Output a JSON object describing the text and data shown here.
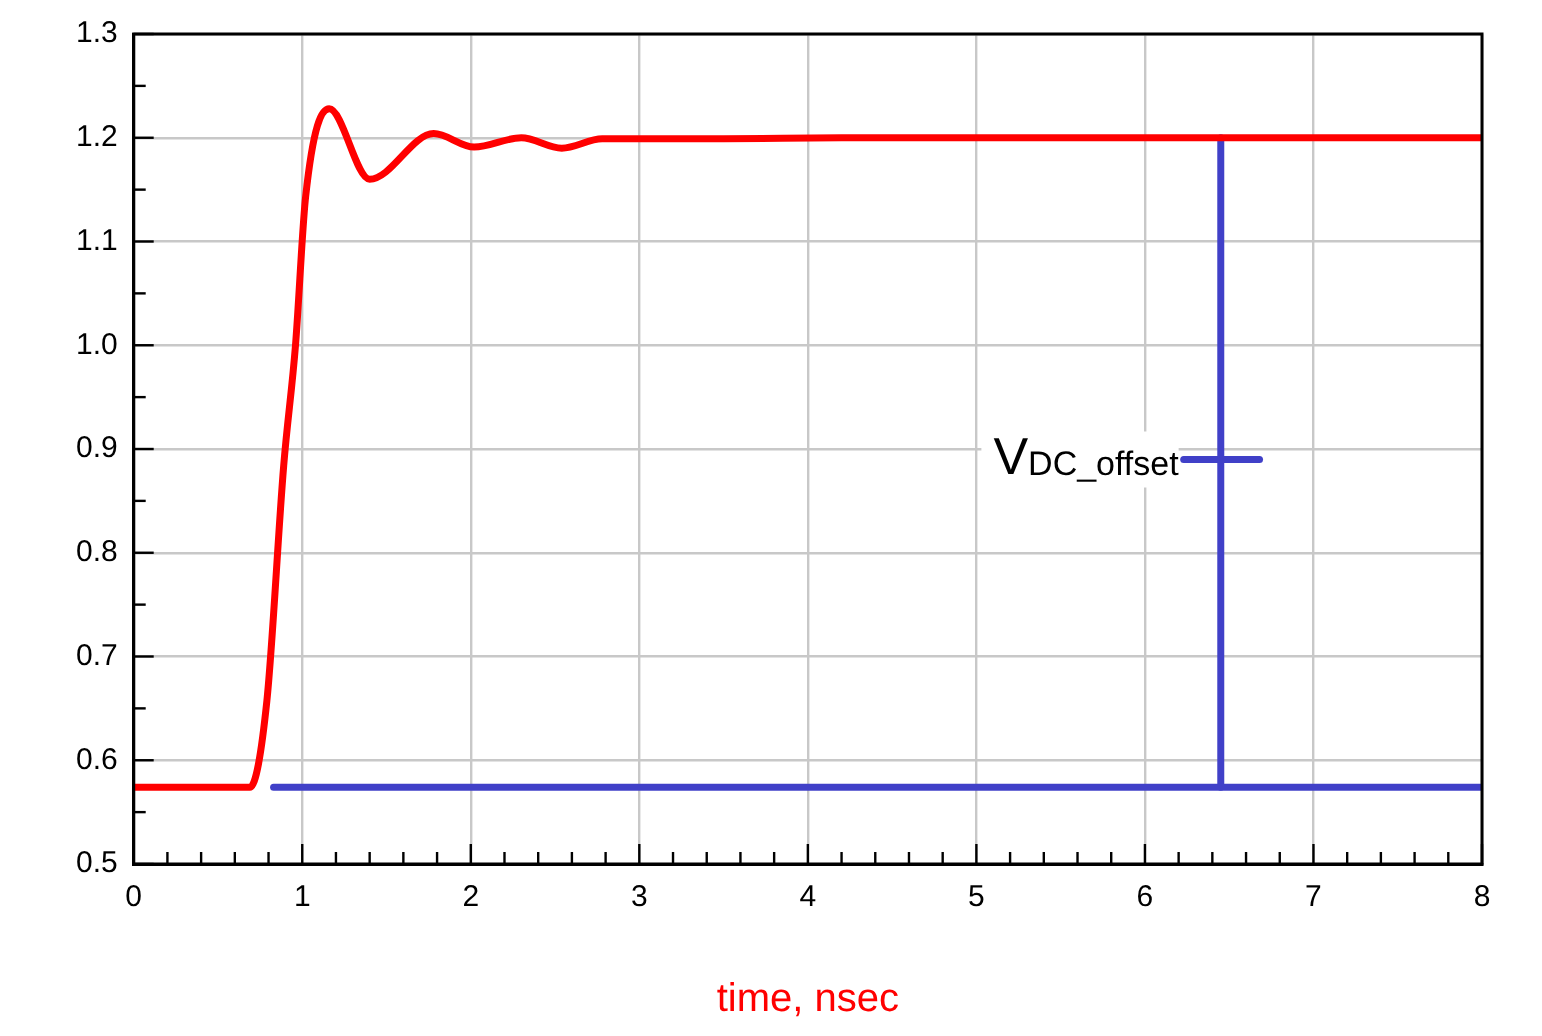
{
  "chart_data": {
    "type": "line",
    "xlabel": "time, nsec",
    "xlim": [
      0,
      8
    ],
    "xticks": [
      0,
      {
        "value": 0.2,
        "label": null
      },
      {
        "value": 0.4,
        "label": null
      },
      {
        "value": 0.6,
        "label": null
      },
      {
        "value": 0.8,
        "label": null
      },
      1,
      {
        "value": 1.2,
        "label": null
      },
      {
        "value": 1.4,
        "label": null
      },
      {
        "value": 1.6,
        "label": null
      },
      {
        "value": 1.8,
        "label": null
      },
      2,
      {
        "value": 2.2,
        "label": null
      },
      {
        "value": 2.4,
        "label": null
      },
      {
        "value": 2.6,
        "label": null
      },
      {
        "value": 2.8,
        "label": null
      },
      3,
      {
        "value": 3.2,
        "label": null
      },
      {
        "value": 3.4,
        "label": null
      },
      {
        "value": 3.6,
        "label": null
      },
      {
        "value": 3.8,
        "label": null
      },
      4,
      {
        "value": 4.2,
        "label": null
      },
      {
        "value": 4.4,
        "label": null
      },
      {
        "value": 4.6,
        "label": null
      },
      {
        "value": 4.8,
        "label": null
      },
      5,
      {
        "value": 5.2,
        "label": null
      },
      {
        "value": 5.4,
        "label": null
      },
      {
        "value": 5.6,
        "label": null
      },
      {
        "value": 5.8,
        "label": null
      },
      6,
      {
        "value": 6.2,
        "label": null
      },
      {
        "value": 6.4,
        "label": null
      },
      {
        "value": 6.6,
        "label": null
      },
      {
        "value": 6.8,
        "label": null
      },
      7,
      {
        "value": 7.2,
        "label": null
      },
      {
        "value": 7.4,
        "label": null
      },
      {
        "value": 7.6,
        "label": null
      },
      {
        "value": 7.8,
        "label": null
      },
      8
    ],
    "ylim": [
      0.5,
      1.3
    ],
    "yticks": [
      {
        "value": 0.5,
        "label": "0.5"
      },
      {
        "value": 0.55,
        "label": null
      },
      {
        "value": 0.6,
        "label": "0.6"
      },
      {
        "value": 0.65,
        "label": null
      },
      {
        "value": 0.7,
        "label": "0.7"
      },
      {
        "value": 0.75,
        "label": null
      },
      {
        "value": 0.8,
        "label": "0.8"
      },
      {
        "value": 0.85,
        "label": null
      },
      {
        "value": 0.9,
        "label": "0.9"
      },
      {
        "value": 0.95,
        "label": null
      },
      {
        "value": 1.0,
        "label": "1.0"
      },
      {
        "value": 1.05,
        "label": null
      },
      {
        "value": 1.1,
        "label": "1.1"
      },
      {
        "value": 1.15,
        "label": null
      },
      {
        "value": 1.2,
        "label": "1.2"
      },
      {
        "value": 1.25,
        "label": null
      },
      {
        "value": 1.3,
        "label": "1.3"
      }
    ],
    "grid": true,
    "marker": "none",
    "line_style": "solid",
    "series": [
      {
        "color": "#ff0000",
        "x": [
          0,
          0.69,
          0.79,
          0.89,
          0.96,
          1.02,
          1.16,
          1.4,
          1.78,
          2.02,
          2.3,
          2.54,
          2.78,
          3.5,
          4.2,
          5,
          8
        ],
        "values": [
          0.574,
          0.574,
          0.657,
          0.884,
          1.0,
          1.143,
          1.228,
          1.16,
          1.204,
          1.191,
          1.2,
          1.19,
          1.199,
          1.199,
          1.2,
          1.2,
          1.2
        ]
      },
      {
        "color": "#4040c8",
        "x": [
          0.83,
          8
        ],
        "values": [
          0.574,
          0.574
        ]
      },
      {
        "color": "#4040c8",
        "x": [
          6.45,
          6.45
        ],
        "values": [
          0.574,
          1.2
        ]
      },
      {
        "color": "#4040c8",
        "x": [
          6.23,
          6.68
        ],
        "values": [
          0.89,
          0.89
        ]
      }
    ],
    "annotations": [
      {
        "text": "V$_{DC_offset}$",
        "x": 6.2,
        "y": 0.89
      }
    ]
  }
}
